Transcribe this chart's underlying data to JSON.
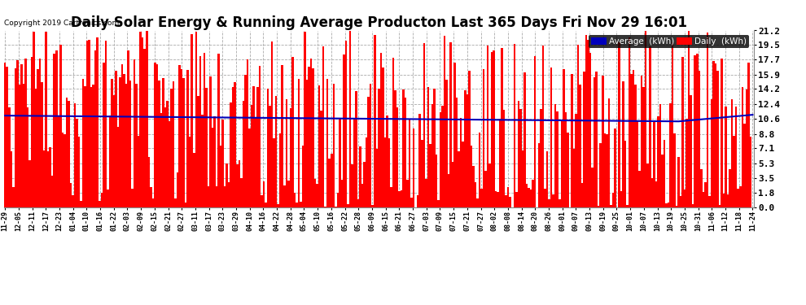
{
  "title": "Daily Solar Energy & Running Average Producton Last 365 Days Fri Nov 29 16:01",
  "copyright": "Copyright 2019 Cartronics.com",
  "yticks": [
    0.0,
    1.8,
    3.5,
    5.3,
    7.1,
    8.8,
    10.6,
    12.4,
    14.2,
    15.9,
    17.7,
    19.5,
    21.2
  ],
  "ymin": 0.0,
  "ymax": 21.2,
  "bar_color": "#FF0000",
  "avg_line_color": "#0000BB",
  "legend_avg_bg": "#0000BB",
  "legend_daily_bg": "#FF0000",
  "legend_avg_text": "Average  (kWh)",
  "legend_daily_text": "Daily  (kWh)",
  "title_fontsize": 12,
  "background_color": "#FFFFFF",
  "grid_color": "#AAAAAA"
}
